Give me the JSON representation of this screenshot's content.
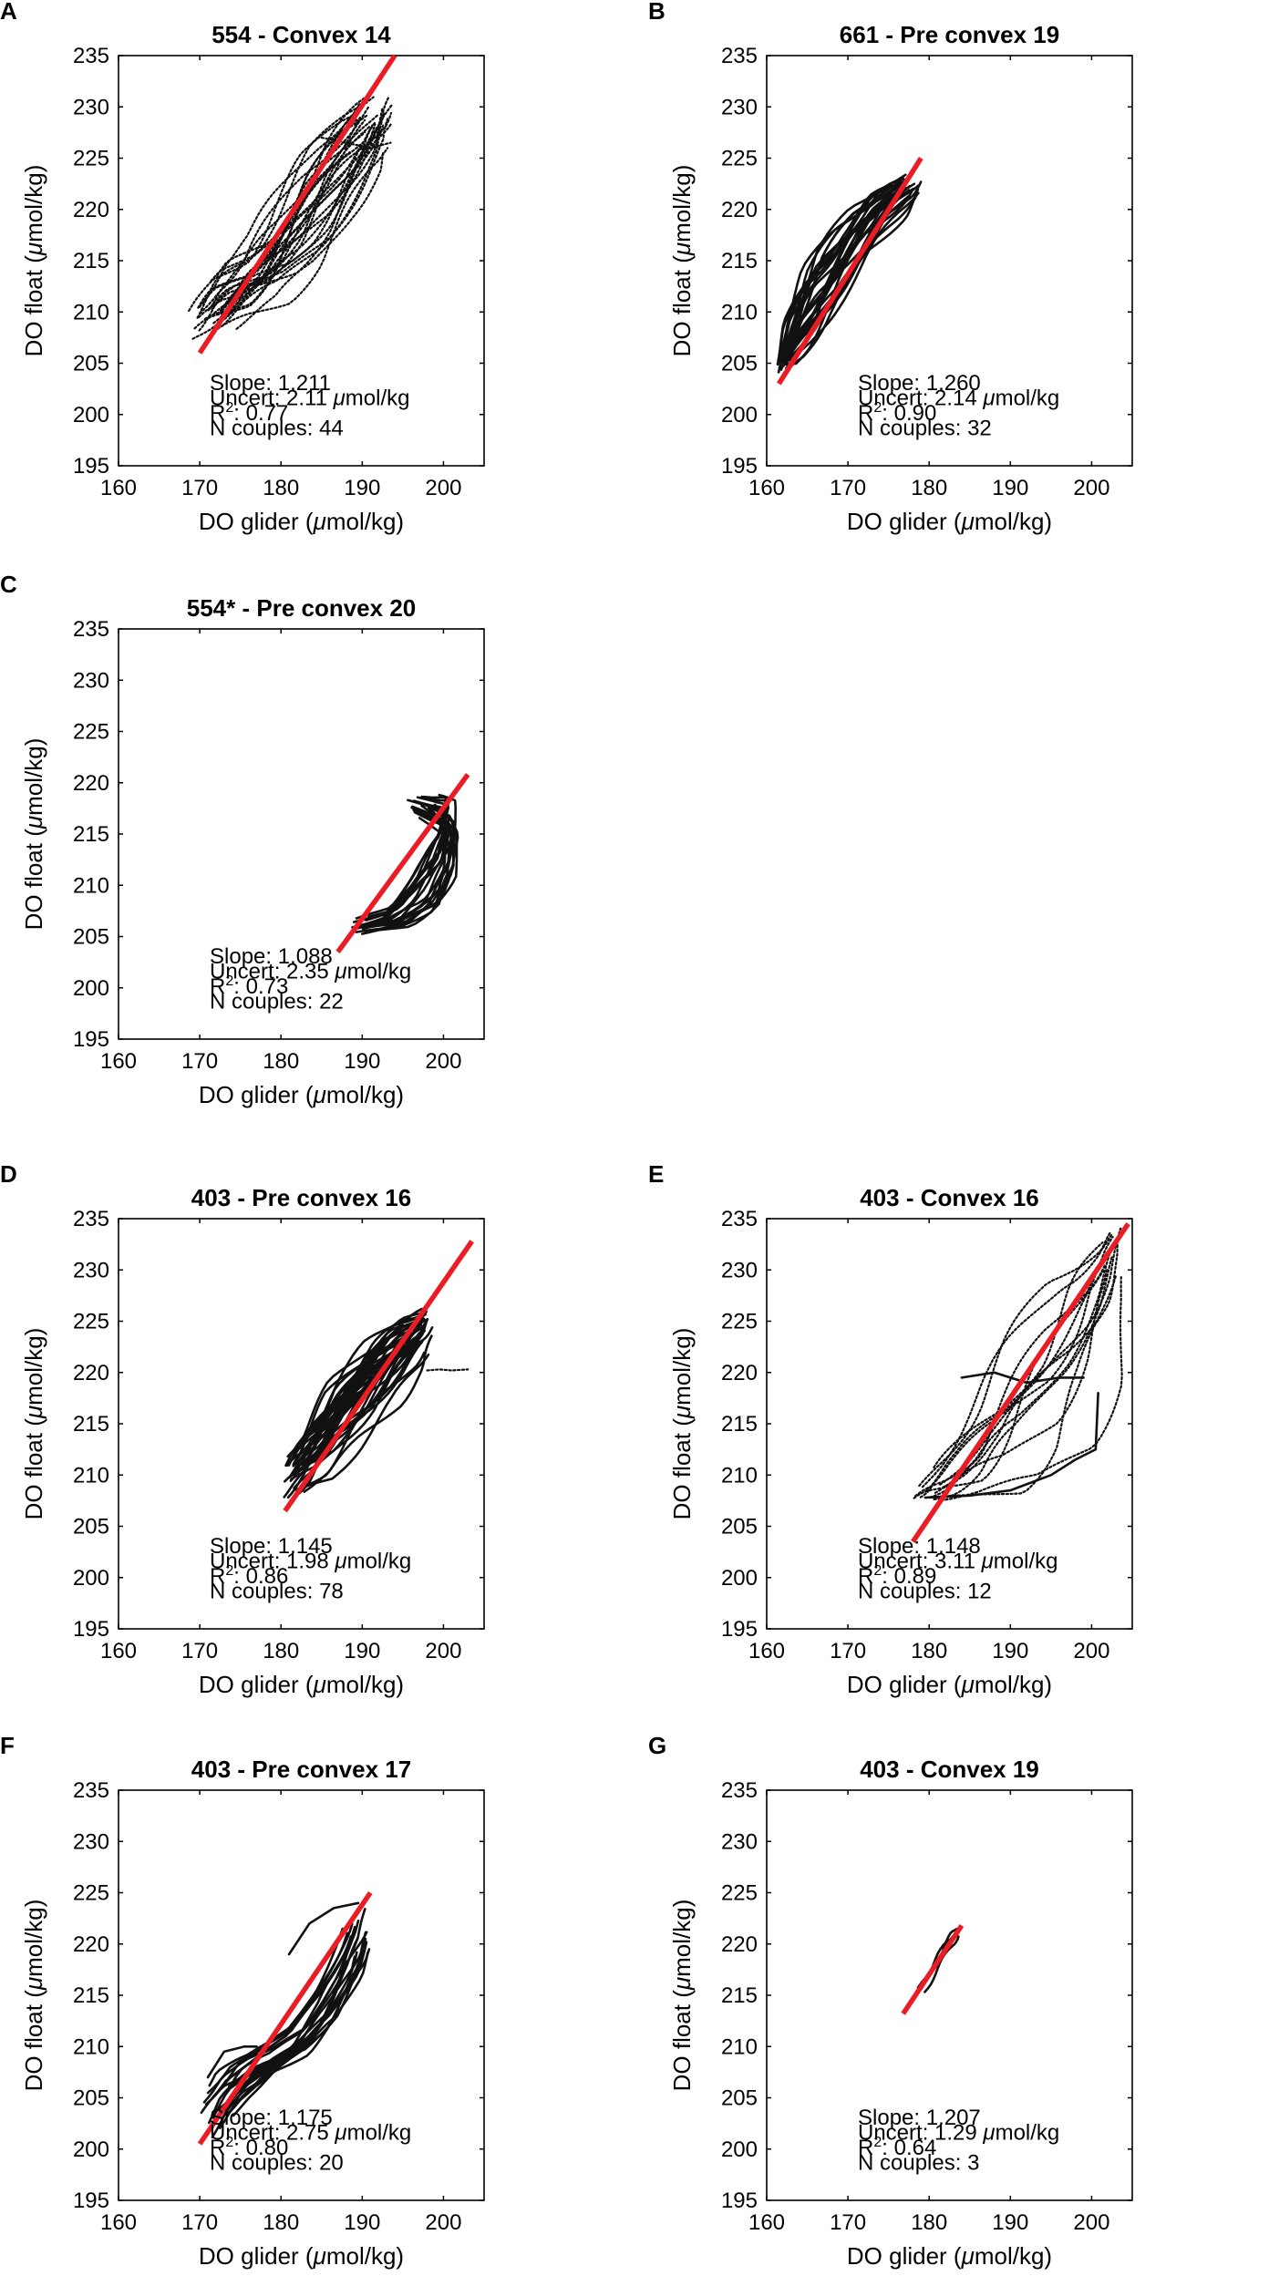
{
  "figure": {
    "xlabel_main": "DO glider (",
    "xlabel_unit": "mol/kg)",
    "ylabel_main": "DO float (",
    "ylabel_unit": "mol/kg)",
    "mu": "μ",
    "slope_label": "Slope: ",
    "uncert_label": "Uncert: ",
    "uncert_unit": "mol/kg",
    "r2_label_base": "R",
    "r2_label_exp": "2",
    "r2_label_tail": ": ",
    "n_label": "N couples: "
  },
  "chart_data": [
    {
      "letter": "A",
      "title": "554 - Convex 14",
      "type": "scatter",
      "xlabel": "DO glider (μmol/kg)",
      "ylabel": "DO float (μmol/kg)",
      "xlim": [
        160,
        205
      ],
      "ylim": [
        195,
        235
      ],
      "xticks": [
        160,
        170,
        180,
        190,
        200
      ],
      "yticks": [
        195,
        200,
        205,
        210,
        215,
        220,
        225,
        230,
        235
      ],
      "fit": {
        "x": [
          170,
          194
        ],
        "y": [
          206,
          235
        ]
      },
      "slope": "1.211",
      "uncert": "2.11",
      "r2": "0.77",
      "n": "44"
    },
    {
      "letter": "B",
      "title": "661 - Pre convex 19",
      "type": "scatter",
      "xlabel": "DO glider (μmol/kg)",
      "ylabel": "DO float (μmol/kg)",
      "xlim": [
        160,
        205
      ],
      "ylim": [
        195,
        235
      ],
      "xticks": [
        160,
        170,
        180,
        190,
        200
      ],
      "yticks": [
        195,
        200,
        205,
        210,
        215,
        220,
        225,
        230,
        235
      ],
      "fit": {
        "x": [
          161.5,
          179
        ],
        "y": [
          203,
          225
        ]
      },
      "slope": "1.260",
      "uncert": "2.14",
      "r2": "0.90",
      "n": "32"
    },
    {
      "letter": "C",
      "title": "554* - Pre convex 20",
      "type": "scatter",
      "xlabel": "DO glider (μmol/kg)",
      "ylabel": "DO float (μmol/kg)",
      "xlim": [
        160,
        205
      ],
      "ylim": [
        195,
        235
      ],
      "xticks": [
        160,
        170,
        180,
        190,
        200
      ],
      "yticks": [
        195,
        200,
        205,
        210,
        215,
        220,
        225,
        230,
        235
      ],
      "fit": {
        "x": [
          187,
          203
        ],
        "y": [
          203.5,
          220.8
        ]
      },
      "slope": "1.088",
      "uncert": "2.35",
      "r2": "0.73",
      "n": "22"
    },
    {
      "letter": "D",
      "title": "403 - Pre convex 16",
      "type": "scatter",
      "xlabel": "DO glider (μmol/kg)",
      "ylabel": "DO float (μmol/kg)",
      "xlim": [
        160,
        205
      ],
      "ylim": [
        195,
        235
      ],
      "xticks": [
        160,
        170,
        180,
        190,
        200
      ],
      "yticks": [
        195,
        200,
        205,
        210,
        215,
        220,
        225,
        230,
        235
      ],
      "fit": {
        "x": [
          180.5,
          203.5
        ],
        "y": [
          206.5,
          232.8
        ]
      },
      "slope": "1.145",
      "uncert": "1.98",
      "r2": "0.86",
      "n": "78"
    },
    {
      "letter": "E",
      "title": "403 - Convex 16",
      "type": "scatter",
      "xlabel": "DO glider (μmol/kg)",
      "ylabel": "DO float (μmol/kg)",
      "xlim": [
        160,
        205
      ],
      "ylim": [
        195,
        235
      ],
      "xticks": [
        160,
        170,
        180,
        190,
        200
      ],
      "yticks": [
        195,
        200,
        205,
        210,
        215,
        220,
        225,
        230,
        235
      ],
      "fit": {
        "x": [
          178,
          204.5
        ],
        "y": [
          203.5,
          234.5
        ]
      },
      "slope": "1.148",
      "uncert": "3.11",
      "r2": "0.89",
      "n": "12"
    },
    {
      "letter": "F",
      "title": "403 - Pre convex 17",
      "type": "scatter",
      "xlabel": "DO glider (μmol/kg)",
      "ylabel": "DO float (μmol/kg)",
      "xlim": [
        160,
        205
      ],
      "ylim": [
        195,
        235
      ],
      "xticks": [
        160,
        170,
        180,
        190,
        200
      ],
      "yticks": [
        195,
        200,
        205,
        210,
        215,
        220,
        225,
        230,
        235
      ],
      "fit": {
        "x": [
          170,
          191
        ],
        "y": [
          200.5,
          225
        ]
      },
      "slope": "1.175",
      "uncert": "2.75",
      "r2": "0.80",
      "n": "20"
    },
    {
      "letter": "G",
      "title": "403 - Convex 19",
      "type": "scatter",
      "xlabel": "DO glider (μmol/kg)",
      "ylabel": "DO float (μmol/kg)",
      "xlim": [
        160,
        205
      ],
      "ylim": [
        195,
        235
      ],
      "xticks": [
        160,
        170,
        180,
        190,
        200
      ],
      "yticks": [
        195,
        200,
        205,
        210,
        215,
        220,
        225,
        230,
        235
      ],
      "fit": {
        "x": [
          176.8,
          184
        ],
        "y": [
          213.2,
          221.8
        ]
      },
      "slope": "1.207",
      "uncert": "1.29",
      "r2": "0.64",
      "n": "3"
    }
  ],
  "trace_clusters": [
    {
      "panel": 0,
      "seed": 11,
      "style": "dots",
      "strokes": 30,
      "steps": 34,
      "center": [
        [
          170.5,
          209
        ],
        [
          174,
          212
        ],
        [
          178,
          214
        ],
        [
          182,
          218
        ],
        [
          186,
          223
        ],
        [
          190,
          227
        ],
        [
          192.5,
          230
        ]
      ],
      "spread_x": [
        2.0,
        3.0,
        3.5,
        4.0,
        4.0,
        3.5,
        2.0
      ],
      "spread_y": [
        1.6,
        2.8,
        3.2,
        3.6,
        3.4,
        3.0,
        2.4
      ]
    },
    {
      "panel": 1,
      "seed": 23,
      "style": "lines",
      "strokes": 30,
      "steps": 26,
      "center": [
        [
          161.8,
          204.5
        ],
        [
          164,
          208
        ],
        [
          167,
          212.5
        ],
        [
          171,
          217
        ],
        [
          175,
          220.5
        ],
        [
          178,
          222.5
        ]
      ],
      "spread_x": [
        0.6,
        1.8,
        2.4,
        2.6,
        2.4,
        1.0
      ],
      "spread_y": [
        1.2,
        2.4,
        3.0,
        3.0,
        2.4,
        1.2
      ]
    },
    {
      "panel": 2,
      "seed": 37,
      "style": "lines",
      "strokes": 22,
      "steps": 22,
      "center": [
        [
          189,
          205.8
        ],
        [
          194,
          206.8
        ],
        [
          198,
          209.5
        ],
        [
          200.5,
          213
        ],
        [
          201,
          216.5
        ],
        [
          197,
          218.2
        ]
      ],
      "spread_x": [
        1.0,
        2.0,
        2.0,
        1.2,
        1.0,
        3.5
      ],
      "spread_y": [
        0.6,
        1.0,
        2.0,
        2.4,
        2.0,
        0.8
      ]
    },
    {
      "panel": 3,
      "seed": 41,
      "style": "lines",
      "strokes": 40,
      "steps": 26,
      "center": [
        [
          181,
          209.5
        ],
        [
          184.5,
          212
        ],
        [
          188,
          216
        ],
        [
          192,
          219.5
        ],
        [
          195.5,
          222.5
        ],
        [
          198,
          224.5
        ]
      ],
      "spread_x": [
        0.8,
        2.0,
        2.6,
        2.6,
        2.2,
        0.8
      ],
      "spread_y": [
        1.8,
        2.6,
        3.0,
        3.0,
        2.4,
        1.6
      ]
    },
    {
      "panel": 4,
      "seed": 53,
      "style": "dots",
      "strokes": 14,
      "steps": 40,
      "center": [
        [
          179,
          208
        ],
        [
          184,
          210.5
        ],
        [
          190,
          214
        ],
        [
          195,
          219
        ],
        [
          199,
          225
        ],
        [
          202,
          230
        ],
        [
          203.5,
          233.5
        ]
      ],
      "spread_x": [
        1.0,
        4.0,
        6.0,
        6.5,
        5.5,
        2.8,
        1.0
      ],
      "spread_y": [
        0.6,
        2.6,
        5.0,
        6.0,
        5.5,
        3.2,
        1.2
      ]
    },
    {
      "panel": 5,
      "seed": 67,
      "style": "lines",
      "strokes": 20,
      "steps": 28,
      "center": [
        [
          171,
          203.5
        ],
        [
          174,
          206.5
        ],
        [
          178,
          208.5
        ],
        [
          182,
          210.5
        ],
        [
          185.5,
          214.5
        ],
        [
          188.5,
          219
        ],
        [
          190,
          222
        ]
      ],
      "spread_x": [
        1.6,
        2.0,
        1.8,
        1.6,
        1.6,
        1.6,
        1.2
      ],
      "spread_y": [
        2.4,
        1.8,
        1.0,
        1.4,
        2.4,
        2.4,
        1.8
      ]
    },
    {
      "panel": 6,
      "seed": 79,
      "style": "lines",
      "strokes": 3,
      "steps": 14,
      "center": [
        [
          178.5,
          215
        ],
        [
          180.5,
          217.5
        ],
        [
          182.5,
          220
        ],
        [
          183.5,
          221.5
        ]
      ],
      "spread_x": [
        0.8,
        1.0,
        1.0,
        0.6
      ],
      "spread_y": [
        0.8,
        1.2,
        1.2,
        0.6
      ]
    }
  ],
  "trace_extras": [
    {
      "panel": 3,
      "points": [
        [
          198,
          220.2
        ],
        [
          199.5,
          220.3
        ],
        [
          201,
          220.2
        ],
        [
          203,
          220.3
        ]
      ],
      "style": "dots"
    },
    {
      "panel": 4,
      "points": [
        [
          184,
          219.5
        ],
        [
          188,
          220
        ],
        [
          192,
          219
        ],
        [
          196,
          219.5
        ],
        [
          199,
          219.5
        ]
      ],
      "style": "lines"
    },
    {
      "panel": 4,
      "points": [
        [
          179.5,
          207.8
        ],
        [
          185,
          208
        ],
        [
          190,
          208.5
        ],
        [
          195,
          210
        ],
        [
          198,
          211.5
        ],
        [
          200.5,
          212.5
        ],
        [
          200.8,
          218
        ]
      ],
      "style": "lines"
    },
    {
      "panel": 0,
      "points": [
        [
          185,
          227
        ],
        [
          188,
          226.5
        ],
        [
          191,
          226
        ],
        [
          193.5,
          226.5
        ]
      ],
      "style": "dots"
    },
    {
      "panel": 5,
      "points": [
        [
          181,
          219
        ],
        [
          183.5,
          222
        ],
        [
          186.5,
          223.5
        ],
        [
          189.5,
          224
        ]
      ],
      "style": "lines"
    },
    {
      "panel": 5,
      "points": [
        [
          171,
          207
        ],
        [
          173,
          209.5
        ],
        [
          175.5,
          210
        ],
        [
          177,
          210
        ]
      ],
      "style": "lines"
    }
  ]
}
